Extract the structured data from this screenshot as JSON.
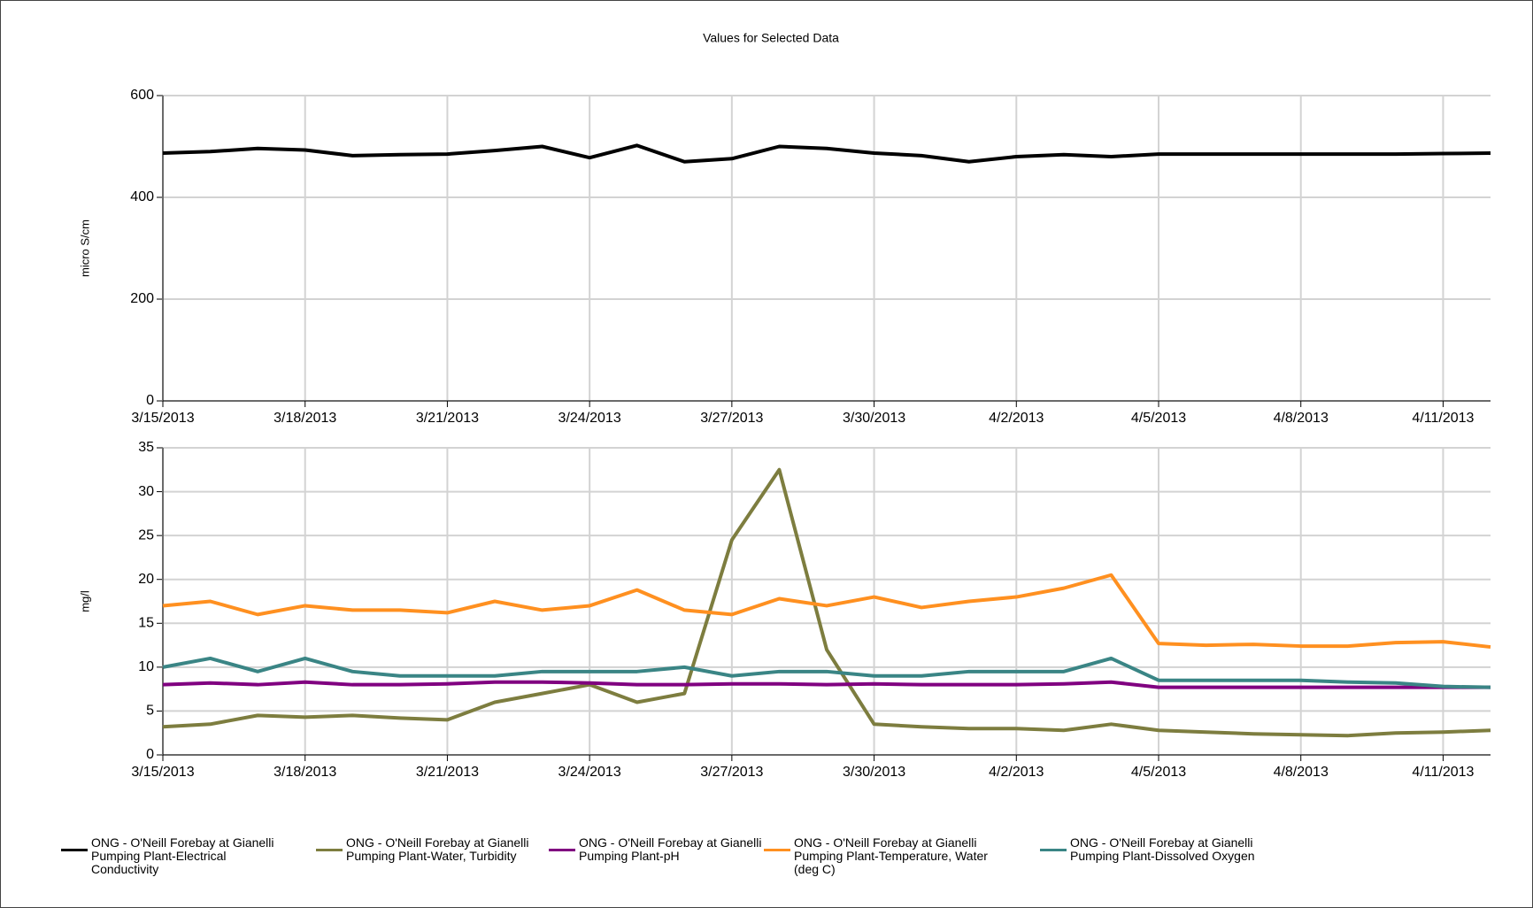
{
  "chart_data": [
    {
      "type": "line",
      "title": "Values for Selected Data",
      "ylabel": "micro S/cm",
      "x": [
        "3/15/2013",
        "3/16/2013",
        "3/17/2013",
        "3/18/2013",
        "3/19/2013",
        "3/20/2013",
        "3/21/2013",
        "3/22/2013",
        "3/23/2013",
        "3/24/2013",
        "3/25/2013",
        "3/26/2013",
        "3/27/2013",
        "3/28/2013",
        "3/29/2013",
        "3/30/2013",
        "3/31/2013",
        "4/1/2013",
        "4/2/2013",
        "4/3/2013",
        "4/4/2013",
        "4/5/2013",
        "4/6/2013",
        "4/7/2013",
        "4/8/2013",
        "4/9/2013",
        "4/10/2013",
        "4/11/2013",
        "4/12/2013"
      ],
      "xlim": [
        "3/15/2013",
        "4/12/2013"
      ],
      "xticks": [
        "3/15/2013",
        "3/18/2013",
        "3/21/2013",
        "3/24/2013",
        "3/27/2013",
        "3/30/2013",
        "4/2/2013",
        "4/5/2013",
        "4/8/2013",
        "4/11/2013"
      ],
      "ylim": [
        0,
        600
      ],
      "yticks": [
        0,
        200,
        400,
        600
      ],
      "grid": true,
      "series": [
        {
          "name": "ONG - O'Neill Forebay at Gianelli Pumping Plant-Electrical Conductivity",
          "color": "#000000",
          "values": [
            487,
            490,
            496,
            493,
            482,
            484,
            485,
            492,
            500,
            478,
            502,
            470,
            476,
            500,
            496,
            487,
            482,
            470,
            480,
            484,
            480,
            485,
            485,
            485,
            485,
            485,
            485,
            486,
            487
          ]
        }
      ]
    },
    {
      "type": "line",
      "ylabel": "mg/l",
      "x": [
        "3/15/2013",
        "3/16/2013",
        "3/17/2013",
        "3/18/2013",
        "3/19/2013",
        "3/20/2013",
        "3/21/2013",
        "3/22/2013",
        "3/23/2013",
        "3/24/2013",
        "3/25/2013",
        "3/26/2013",
        "3/27/2013",
        "3/28/2013",
        "3/29/2013",
        "3/30/2013",
        "3/31/2013",
        "4/1/2013",
        "4/2/2013",
        "4/3/2013",
        "4/4/2013",
        "4/5/2013",
        "4/6/2013",
        "4/7/2013",
        "4/8/2013",
        "4/9/2013",
        "4/10/2013",
        "4/11/2013",
        "4/12/2013"
      ],
      "xlim": [
        "3/15/2013",
        "4/12/2013"
      ],
      "xticks": [
        "3/15/2013",
        "3/18/2013",
        "3/21/2013",
        "3/24/2013",
        "3/27/2013",
        "3/30/2013",
        "4/2/2013",
        "4/5/2013",
        "4/8/2013",
        "4/11/2013"
      ],
      "ylim": [
        0,
        35
      ],
      "yticks": [
        0,
        5,
        10,
        15,
        20,
        25,
        30,
        35
      ],
      "grid": true,
      "series": [
        {
          "name": "ONG - O'Neill Forebay at Gianelli Pumping Plant-Water, Turbidity",
          "color": "#7d7d3f",
          "values": [
            3.2,
            3.5,
            4.5,
            4.3,
            4.5,
            4.2,
            4.0,
            6,
            7,
            8,
            6,
            7,
            24.5,
            32.5,
            12,
            3.5,
            3.2,
            3,
            3,
            2.8,
            3.5,
            2.8,
            2.6,
            2.4,
            2.3,
            2.2,
            2.5,
            2.6,
            2.8
          ]
        },
        {
          "name": "ONG - O'Neill Forebay at Gianelli Pumping Plant-pH",
          "color": "#800080",
          "values": [
            8.0,
            8.2,
            8.0,
            8.3,
            8.0,
            8.0,
            8.1,
            8.3,
            8.3,
            8.2,
            8.0,
            8.0,
            8.1,
            8.1,
            8.0,
            8.1,
            8.0,
            8.0,
            8.0,
            8.1,
            8.3,
            7.7,
            7.7,
            7.7,
            7.7,
            7.7,
            7.7,
            7.7,
            7.7
          ]
        },
        {
          "name": "ONG - O'Neill Forebay at Gianelli Pumping Plant-Temperature, Water (deg C)",
          "color": "#ff9020",
          "values": [
            17,
            17.5,
            16,
            17,
            16.5,
            16.5,
            16.2,
            17.5,
            16.5,
            17,
            18.8,
            16.5,
            16,
            17.8,
            17,
            18,
            16.8,
            17.5,
            18,
            19,
            20.5,
            12.7,
            12.5,
            12.6,
            12.4,
            12.4,
            12.8,
            12.9,
            12.3
          ]
        },
        {
          "name": "ONG - O'Neill Forebay at Gianelli Pumping Plant-Dissolved Oxygen",
          "color": "#3a8585",
          "values": [
            10,
            11,
            9.5,
            11,
            9.5,
            9,
            9,
            9,
            9.5,
            9.5,
            9.5,
            10,
            9,
            9.5,
            9.5,
            9,
            9,
            9.5,
            9.5,
            9.5,
            11,
            8.5,
            8.5,
            8.5,
            8.5,
            8.3,
            8.2,
            7.8,
            7.7
          ]
        }
      ]
    }
  ]
}
